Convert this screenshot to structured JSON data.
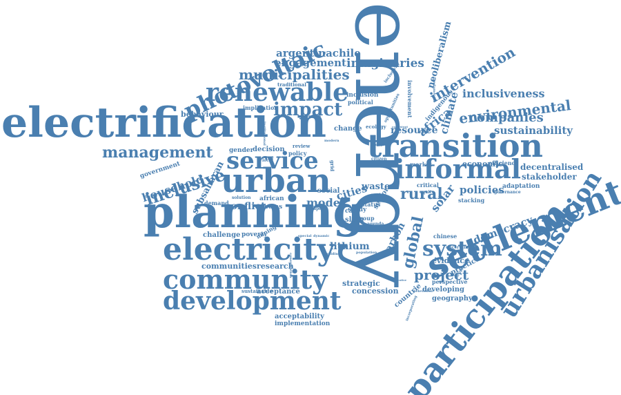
{
  "word_cloud": {
    "color": "#4a7fb0",
    "words": [
      "energy",
      "electrification",
      "planning",
      "urban",
      "transition",
      "settlement",
      "participation",
      "development",
      "community",
      "electricity",
      "photovoltaic",
      "renewable",
      "service",
      "informal",
      "urbanisation",
      "system",
      "inclusive",
      "management",
      "impact",
      "municipalities",
      "engagement",
      "argentinachile",
      "imaginaries",
      "intervention",
      "neoliberalism",
      "environmental",
      "companies",
      "inclusiveness",
      "sustainability",
      "household",
      "decentralised",
      "stakeholder",
      "rural",
      "global",
      "policies",
      "democracy",
      "project",
      "lithium",
      "concession",
      "strategic",
      "geography",
      "developing",
      "evidence",
      "acceptability",
      "implementation",
      "acceptance",
      "sustainable",
      "research",
      "communities",
      "challenge",
      "conflict",
      "model",
      "cities",
      "waste",
      "africa",
      "climate",
      "resource",
      "economic",
      "efficiency",
      "adaptation",
      "practice",
      "countrie",
      "carbon",
      "solar",
      "behaviour",
      "gender",
      "decision",
      "social",
      "government",
      "poverty",
      "mining",
      "subsaharan",
      "demand",
      "case",
      "slum",
      "study",
      "group",
      "change",
      "ecology",
      "inclusion",
      "political",
      "traditional",
      "implication",
      "perspective",
      "chinese",
      "stacking",
      "governance",
      "market",
      "critical",
      "equity",
      "policy",
      "review",
      "african",
      "ubems",
      "solution",
      "area",
      "status",
      "sector",
      "agenda",
      "building",
      "population",
      "uncertainties",
      "television",
      "indigenous",
      "inclusivity",
      "opportunities",
      "involvement",
      "fundamental",
      "citizen",
      "lifestyle",
      "paper",
      "regulatory",
      "dynamic",
      "special",
      "deciphering",
      "incorporating",
      "innovative",
      "consistent",
      "modern",
      "acc",
      "need",
      "local",
      "consumption",
      "grid",
      "institutional"
    ]
  }
}
